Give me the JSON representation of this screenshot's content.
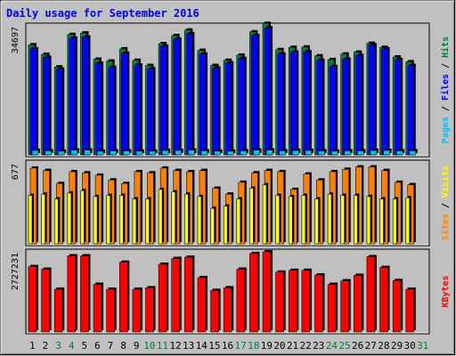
{
  "title": "Daily usage for September 2016",
  "colors": {
    "background": "#c0c0c0",
    "title": "#0000ff",
    "hits": "#008040",
    "files": "#0000ff",
    "pages": "#00c0ff",
    "visits": "#ffff00",
    "sites": "#ff8000",
    "kbytes": "#ff0000",
    "weekend_label": "#008040",
    "weekday_label": "#000000"
  },
  "chart_data": [
    {
      "type": "bar",
      "panel": "hits-files-pages",
      "y_max_label": "34697",
      "ylim": [
        0,
        34697
      ],
      "right_labels": [
        "Pages",
        "Files",
        "Hits"
      ],
      "label_separator": " / ",
      "categories": [
        "1",
        "2",
        "3",
        "4",
        "5",
        "6",
        "7",
        "8",
        "9",
        "10",
        "11",
        "12",
        "13",
        "14",
        "15",
        "16",
        "17",
        "18",
        "19",
        "20",
        "21",
        "22",
        "23",
        "24",
        "25",
        "26",
        "27",
        "28",
        "29",
        "30",
        "31"
      ],
      "weekend_days": [
        "3",
        "4",
        "10",
        "11",
        "17",
        "18",
        "24",
        "25",
        "31"
      ],
      "series": [
        {
          "name": "Hits",
          "color_key": "hits",
          "values": [
            29800,
            27200,
            23800,
            32600,
            33000,
            25900,
            25400,
            28700,
            25600,
            24200,
            30100,
            32300,
            33800,
            28300,
            24200,
            25600,
            27000,
            33300,
            35600,
            28500,
            29100,
            29200,
            26800,
            25800,
            27300,
            27800,
            30200,
            29100,
            26500,
            25200,
            0
          ]
        },
        {
          "name": "Files",
          "color_key": "files",
          "values": [
            28700,
            26400,
            23200,
            31600,
            31900,
            24800,
            23700,
            27500,
            24300,
            23300,
            29400,
            31300,
            32800,
            27300,
            23500,
            24900,
            26100,
            32300,
            34400,
            27300,
            27800,
            27900,
            25600,
            23900,
            25900,
            26900,
            29800,
            28700,
            25800,
            24200,
            0
          ]
        },
        {
          "name": "Pages",
          "color_key": "pages",
          "values": [
            1200,
            1100,
            1000,
            1300,
            1300,
            1000,
            1100,
            1100,
            1000,
            1000,
            1200,
            1200,
            1300,
            1100,
            1000,
            1000,
            1100,
            1300,
            1300,
            1100,
            1200,
            1200,
            1100,
            1000,
            1100,
            1100,
            1200,
            1200,
            1100,
            1100,
            0
          ]
        }
      ]
    },
    {
      "type": "bar",
      "panel": "visits-sites",
      "y_max_label": "677",
      "ylim": [
        0,
        677
      ],
      "right_labels": [
        "Sites",
        "Visits"
      ],
      "label_separator": " / ",
      "categories": [
        "1",
        "2",
        "3",
        "4",
        "5",
        "6",
        "7",
        "8",
        "9",
        "10",
        "11",
        "12",
        "13",
        "14",
        "15",
        "16",
        "17",
        "18",
        "19",
        "20",
        "21",
        "22",
        "23",
        "24",
        "25",
        "26",
        "27",
        "28",
        "29",
        "30",
        "31"
      ],
      "series": [
        {
          "name": "Sites",
          "color_key": "sites",
          "values": [
            640,
            620,
            510,
            610,
            600,
            580,
            540,
            510,
            610,
            600,
            640,
            620,
            610,
            620,
            470,
            420,
            520,
            600,
            620,
            610,
            460,
            590,
            540,
            610,
            630,
            650,
            650,
            620,
            520,
            500,
            0
          ]
        },
        {
          "name": "Visits",
          "color_key": "visits",
          "values": [
            410,
            420,
            380,
            430,
            450,
            400,
            410,
            410,
            380,
            380,
            460,
            440,
            420,
            400,
            300,
            320,
            380,
            470,
            500,
            410,
            400,
            410,
            380,
            420,
            410,
            410,
            400,
            380,
            380,
            390,
            0
          ]
        }
      ]
    },
    {
      "type": "bar",
      "panel": "kbytes",
      "y_max_label": "2727231",
      "ylim": [
        0,
        2727231
      ],
      "right_labels": [
        "KBytes"
      ],
      "label_separator": "",
      "categories": [
        "1",
        "2",
        "3",
        "4",
        "5",
        "6",
        "7",
        "8",
        "9",
        "10",
        "11",
        "12",
        "13",
        "14",
        "15",
        "16",
        "17",
        "18",
        "19",
        "20",
        "21",
        "22",
        "23",
        "24",
        "25",
        "26",
        "27",
        "28",
        "29",
        "30",
        "31"
      ],
      "series": [
        {
          "name": "KBytes",
          "color_key": "kbytes",
          "values": [
            2250000,
            2160000,
            1470000,
            2620000,
            2620000,
            1640000,
            1470000,
            2400000,
            1470000,
            1520000,
            2330000,
            2530000,
            2570000,
            1870000,
            1430000,
            1520000,
            2160000,
            2700000,
            2760000,
            2060000,
            2120000,
            2120000,
            1960000,
            1640000,
            1760000,
            1950000,
            2590000,
            2220000,
            1770000,
            1470000,
            0
          ]
        }
      ]
    }
  ]
}
